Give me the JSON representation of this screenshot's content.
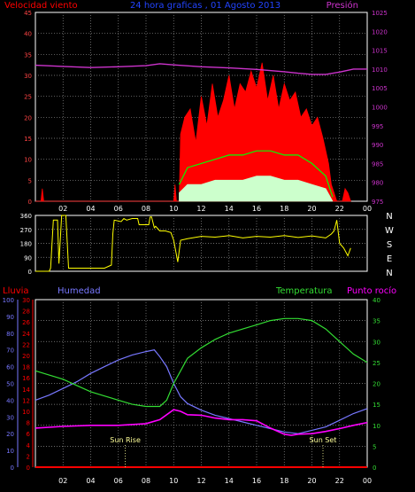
{
  "header": {
    "left": "Velocidad viento",
    "center": "24 hora graficas , 01 Agosto 2013",
    "right": "Presión"
  },
  "colors": {
    "background": "#000000",
    "frame": "#ffffff",
    "grid": "#909090",
    "wind": "#ff0000",
    "gust_avg": "#00ff00",
    "wind_avg": "#ccffcc",
    "pressure": "#cc33cc",
    "direction": "#ffff00",
    "rain": "#ff0000",
    "humidity": "#7777ff",
    "temperature": "#33dd33",
    "dewpoint": "#ff00ff",
    "sun": "#ffff99"
  },
  "x_labels": [
    "02",
    "04",
    "06",
    "08",
    "10",
    "12",
    "14",
    "16",
    "18",
    "20",
    "22",
    "00"
  ],
  "panel1": {
    "left_ticks": [
      "0",
      "5",
      "10",
      "15",
      "20",
      "25",
      "30",
      "35",
      "40",
      "45"
    ],
    "right_ticks": [
      "975",
      "980",
      "985",
      "990",
      "995",
      "1000",
      "1005",
      "1010",
      "1015",
      "1020",
      "1025"
    ]
  },
  "panel2": {
    "left_ticks": [
      "0",
      "90",
      "180",
      "270",
      "360"
    ],
    "right_letters": [
      "N",
      "W",
      "S",
      "E",
      "N"
    ]
  },
  "panel3": {
    "labels": {
      "rain": "Lluvia",
      "humidity": "Humedad",
      "temperature": "Temperatura",
      "dewpoint": "Punto rocío"
    },
    "humidity_ticks": [
      "0",
      "10",
      "20",
      "30",
      "40",
      "50",
      "60",
      "70",
      "80",
      "90",
      "100"
    ],
    "rain_ticks": [
      "0",
      "2",
      "4",
      "6",
      "8",
      "10",
      "12",
      "14",
      "16",
      "18",
      "20",
      "22",
      "24",
      "26",
      "28",
      "30"
    ],
    "temp_ticks": [
      "0",
      "5",
      "10",
      "15",
      "20",
      "25",
      "30",
      "35",
      "40"
    ],
    "sun_rise": "Sun Rise",
    "sun_set": "Sun Set"
  },
  "chart_data": [
    {
      "type": "area",
      "x_unit": "hour",
      "xlim": [
        0,
        24
      ],
      "ylim": [
        0,
        45
      ],
      "y2lim": [
        975,
        1025
      ],
      "series": [
        {
          "axis": "left",
          "x": [
            0,
            0.4,
            0.5,
            0.6,
            10.0,
            10.1,
            10.2,
            10.4,
            10.5,
            10.8,
            11.2,
            11.6,
            12.0,
            12.4,
            12.8,
            13.2,
            13.6,
            14.0,
            14.4,
            14.8,
            15.2,
            15.6,
            16.0,
            16.4,
            16.8,
            17.2,
            17.6,
            18.0,
            18.4,
            18.8,
            19.2,
            19.6,
            20.0,
            20.4,
            20.8,
            21.2,
            21.4,
            21.6,
            21.8,
            22.2,
            22.4,
            22.6,
            22.8
          ],
          "values": [
            0,
            0,
            3,
            0,
            0,
            4,
            0,
            0,
            16,
            20,
            22,
            14,
            25,
            18,
            28,
            20,
            24,
            30,
            22,
            28,
            26,
            31,
            27,
            33,
            24,
            30,
            22,
            28,
            24,
            26,
            20,
            22,
            18,
            20,
            15,
            9,
            4,
            2,
            0,
            0,
            3,
            2,
            0
          ]
        },
        {
          "axis": "left",
          "x": [
            10.4,
            11,
            12,
            13,
            14,
            15,
            16,
            17,
            18,
            19,
            20,
            21,
            21.5
          ],
          "values": [
            4,
            8,
            9,
            10,
            11,
            11,
            12,
            12,
            11,
            11,
            9,
            6,
            1
          ]
        },
        {
          "axis": "left",
          "x": [
            10.4,
            11,
            12,
            13,
            14,
            15,
            16,
            17,
            18,
            19,
            20,
            21,
            21.5
          ],
          "values": [
            2,
            4,
            4,
            5,
            5,
            5,
            6,
            6,
            5,
            5,
            4,
            3,
            0
          ]
        },
        {
          "axis": "right",
          "x": [
            0,
            2,
            4,
            6,
            8,
            9,
            10,
            12,
            14,
            16,
            18,
            19,
            20,
            21,
            22,
            23,
            24
          ],
          "values": [
            1011,
            1010.7,
            1010.4,
            1010.6,
            1010.9,
            1011.4,
            1011.1,
            1010.6,
            1010.3,
            1009.9,
            1009.3,
            1008.9,
            1008.6,
            1008.6,
            1009.2,
            1010,
            1010
          ]
        }
      ]
    },
    {
      "type": "line",
      "x_unit": "hour",
      "xlim": [
        0,
        24
      ],
      "ylim": [
        0,
        360
      ],
      "series": [
        {
          "x": [
            0,
            1.0,
            1.1,
            1.3,
            1.6,
            1.7,
            1.9,
            2.2,
            2.4,
            3.0,
            5.0,
            5.5,
            5.6,
            5.7,
            6.2,
            6.4,
            6.6,
            7.0,
            7.4,
            7.5,
            8.2,
            8.3,
            8.4,
            8.6,
            8.7,
            9.0,
            9.4,
            9.8,
            10.0,
            10.3,
            10.5,
            11,
            12,
            13,
            14,
            15,
            16,
            17,
            18,
            19,
            20,
            21,
            21.4,
            21.6,
            21.8,
            22.0,
            22.3,
            22.6,
            22.8
          ],
          "values": [
            0,
            0,
            20,
            330,
            330,
            50,
            360,
            360,
            20,
            20,
            20,
            40,
            240,
            330,
            320,
            340,
            330,
            340,
            340,
            300,
            300,
            350,
            350,
            280,
            290,
            260,
            260,
            250,
            200,
            60,
            200,
            210,
            225,
            220,
            230,
            215,
            225,
            220,
            230,
            218,
            228,
            215,
            240,
            260,
            330,
            180,
            150,
            100,
            150
          ]
        }
      ]
    },
    {
      "type": "line",
      "x_unit": "hour",
      "xlim": [
        0,
        24
      ],
      "series": [
        {
          "name": "Lluvia",
          "axis": "rain",
          "x": [
            0,
            24
          ],
          "values": [
            0,
            0
          ]
        },
        {
          "name": "Humedad",
          "axis": "humidity",
          "x": [
            0,
            1,
            2,
            3,
            4,
            5,
            6,
            7,
            8,
            8.6,
            9,
            9.5,
            10,
            10.5,
            11,
            12,
            13,
            14,
            15,
            16,
            17,
            18,
            19,
            20,
            21,
            22,
            23,
            24
          ],
          "values": [
            40,
            43,
            47,
            51,
            56,
            60,
            64,
            67,
            69,
            70,
            66,
            60,
            50,
            42,
            38,
            34,
            31,
            29,
            27,
            25,
            23,
            21,
            20,
            22,
            24,
            28,
            32,
            35
          ]
        },
        {
          "name": "Temperatura",
          "axis": "temp",
          "x": [
            0,
            1,
            2,
            3,
            4,
            5,
            6,
            7,
            8,
            9,
            9.5,
            10,
            10.5,
            11,
            12,
            13,
            14,
            15,
            16,
            17,
            18,
            19,
            20,
            21,
            22,
            23,
            24
          ],
          "values": [
            23,
            22,
            21,
            19.5,
            18,
            17,
            16,
            15,
            14.5,
            14.5,
            16,
            20,
            23,
            26,
            28.5,
            30.5,
            32,
            33,
            34,
            35,
            35.5,
            35.5,
            35,
            33,
            30,
            27,
            25
          ]
        },
        {
          "name": "Punto rocío",
          "axis": "rain",
          "x": [
            0,
            2,
            4,
            6,
            8,
            9,
            10,
            10.5,
            11,
            12,
            13,
            14,
            15,
            16,
            17,
            18,
            18.5,
            19,
            20,
            21,
            22,
            23,
            24
          ],
          "values": [
            7,
            7.3,
            7.5,
            7.5,
            7.8,
            8.5,
            10.3,
            10,
            9.4,
            9.3,
            8.8,
            8.5,
            8.5,
            8.3,
            7,
            5.9,
            5.7,
            5.9,
            6,
            6.4,
            6.9,
            7.5,
            8
          ]
        }
      ],
      "annotations": [
        {
          "text": "Sun Rise",
          "x": 6.5
        },
        {
          "text": "Sun Set",
          "x": 20.8
        }
      ]
    }
  ]
}
